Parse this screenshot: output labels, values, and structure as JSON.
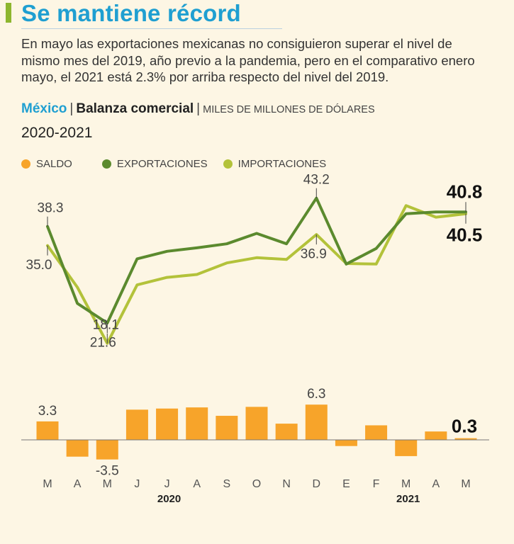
{
  "header": {
    "title": "Se mantiene récord",
    "intro": "En mayo las exportaciones mexicanas no consiguieron superar el nivel de mismo mes del 2019, año previo a la pandemia, pero en el comparativo enero mayo, el 2021 está 2.3% por arriba respecto del nivel del 2019.",
    "country": "México",
    "chart_title": "Balanza comercial",
    "units": "MILES DE MILLONES DE DÓLARES",
    "period": "2020-2021"
  },
  "colors": {
    "saldo": "#f7a42a",
    "exportaciones": "#5b8a2e",
    "importaciones": "#b3c23a",
    "title": "#1f9fd1"
  },
  "chart_data": {
    "type": "line+bar",
    "categories": [
      "M",
      "A",
      "M",
      "J",
      "J",
      "A",
      "S",
      "O",
      "N",
      "D",
      "E",
      "F",
      "M",
      "A",
      "M"
    ],
    "year_labels": [
      {
        "label": "2020",
        "index": 4
      },
      {
        "label": "2021",
        "index": 12
      }
    ],
    "legend": [
      "SALDO",
      "EXPORTACIONES",
      "IMPORTACIONES"
    ],
    "series": [
      {
        "name": "EXPORTACIONES",
        "type": "line",
        "values": [
          38.3,
          25.0,
          21.6,
          32.7,
          34.0,
          34.6,
          35.3,
          37.1,
          35.3,
          43.2,
          31.8,
          34.5,
          40.5,
          40.8,
          40.8
        ]
      },
      {
        "name": "IMPORTACIONES",
        "type": "line",
        "values": [
          35.0,
          27.8,
          18.1,
          28.2,
          29.5,
          30.0,
          32.0,
          32.9,
          32.6,
          36.9,
          31.9,
          31.8,
          41.9,
          39.9,
          40.5
        ]
      },
      {
        "name": "SALDO",
        "type": "bar",
        "values": [
          3.3,
          -3.0,
          -3.5,
          5.4,
          5.6,
          5.8,
          4.3,
          5.9,
          2.9,
          6.3,
          -1.1,
          2.6,
          -2.9,
          1.5,
          0.3
        ]
      }
    ],
    "line_labels": [
      {
        "series": "EXPORTACIONES",
        "index": 0,
        "text": "38.3"
      },
      {
        "series": "IMPORTACIONES",
        "index": 0,
        "text": "35.0"
      },
      {
        "series": "IMPORTACIONES",
        "index": 2,
        "text": "18.1"
      },
      {
        "series": "EXPORTACIONES",
        "index": 2,
        "text": "21.6"
      },
      {
        "series": "EXPORTACIONES",
        "index": 9,
        "text": "43.2"
      },
      {
        "series": "IMPORTACIONES",
        "index": 9,
        "text": "36.9"
      },
      {
        "series": "EXPORTACIONES",
        "index": 14,
        "text": "40.8"
      },
      {
        "series": "IMPORTACIONES",
        "index": 14,
        "text": "40.5"
      }
    ],
    "bar_labels": [
      {
        "index": 0,
        "text": "3.3"
      },
      {
        "index": 2,
        "text": "-3.5"
      },
      {
        "index": 9,
        "text": "6.3"
      },
      {
        "index": 14,
        "text": "0.3"
      }
    ],
    "line_ylim": [
      15,
      45
    ],
    "bar_ylim": [
      -4,
      7
    ],
    "grid": false
  }
}
